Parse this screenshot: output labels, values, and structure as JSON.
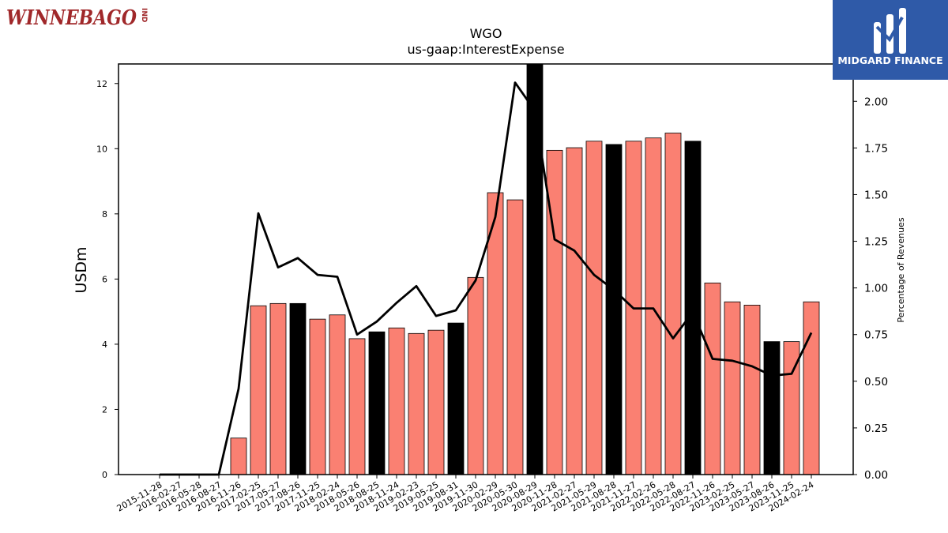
{
  "brand": {
    "left_logo_text": "WINNEBAGO",
    "left_logo_suffix": "IND",
    "right_logo_text": "MIDGARD FINANCE"
  },
  "chart_data": {
    "type": "bar",
    "title": "WGO",
    "subtitle": "us-gaap:InterestExpense",
    "ylabel": "USDm",
    "ylabel_right": "Percentage of Revenues",
    "ylim": [
      0,
      12.6
    ],
    "ylim_right": [
      0,
      2.2
    ],
    "yticks": [
      0,
      2,
      4,
      6,
      8,
      10,
      12
    ],
    "yticks_right": [
      "0.00",
      "0.25",
      "0.50",
      "0.75",
      "1.00",
      "1.25",
      "1.50",
      "1.75",
      "2.00"
    ],
    "categories": [
      "2015-11-28",
      "2016-02-27",
      "2016-05-28",
      "2016-08-27",
      "2016-11-26",
      "2017-02-25",
      "2017-05-27",
      "2017-08-26",
      "2017-11-25",
      "2018-02-24",
      "2018-05-26",
      "2018-08-25",
      "2018-11-24",
      "2019-02-23",
      "2019-05-25",
      "2019-08-31",
      "2019-11-30",
      "2020-02-29",
      "2020-05-30",
      "2020-08-29",
      "2020-11-28",
      "2021-02-27",
      "2021-05-29",
      "2021-08-28",
      "2021-11-27",
      "2022-02-26",
      "2022-05-28",
      "2022-08-27",
      "2022-11-26",
      "2023-02-25",
      "2023-05-27",
      "2023-08-26",
      "2023-11-25",
      "2024-02-24"
    ],
    "series": [
      {
        "kind": "bar",
        "values": [
          0,
          0,
          0,
          0,
          1.12,
          5.18,
          5.25,
          5.25,
          4.77,
          4.9,
          4.17,
          4.38,
          4.5,
          4.33,
          4.43,
          4.65,
          6.05,
          8.65,
          8.43,
          12.65,
          9.95,
          10.03,
          10.23,
          10.13,
          10.23,
          10.33,
          10.48,
          10.23,
          5.88,
          5.3,
          5.2,
          4.08,
          4.08,
          5.3
        ],
        "colors": [
          "#fa8072",
          "#fa8072",
          "#fa8072",
          "#000000",
          "#fa8072",
          "#fa8072",
          "#fa8072",
          "#000000",
          "#fa8072",
          "#fa8072",
          "#fa8072",
          "#000000",
          "#fa8072",
          "#fa8072",
          "#fa8072",
          "#000000",
          "#fa8072",
          "#fa8072",
          "#fa8072",
          "#000000",
          "#fa8072",
          "#fa8072",
          "#fa8072",
          "#000000",
          "#fa8072",
          "#fa8072",
          "#fa8072",
          "#000000",
          "#fa8072",
          "#fa8072",
          "#fa8072",
          "#000000",
          "#fa8072",
          "#fa8072"
        ]
      },
      {
        "kind": "line",
        "axis": "right",
        "color": "#000000",
        "values": [
          0,
          0,
          0,
          0,
          0.46,
          1.4,
          1.11,
          1.16,
          1.07,
          1.06,
          0.75,
          0.82,
          0.92,
          1.01,
          0.85,
          0.88,
          1.04,
          1.38,
          2.1,
          1.95,
          1.26,
          1.2,
          1.07,
          0.99,
          0.89,
          0.89,
          0.73,
          0.87,
          0.62,
          0.61,
          0.58,
          0.53,
          0.54,
          0.76
        ]
      }
    ],
    "bar_colors": {
      "default": "#fa8072",
      "highlight": "#000000"
    },
    "grid": false,
    "legend": "none"
  }
}
